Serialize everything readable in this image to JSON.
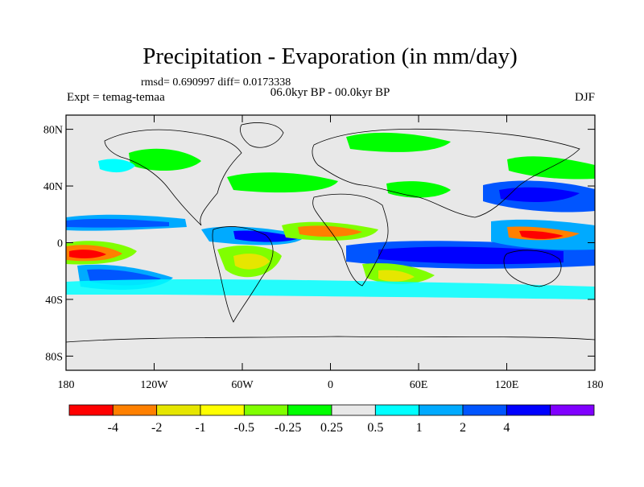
{
  "title": "Precipitation - Evaporation (in mm/day)",
  "stats": "rmsd= 0.690997 diff= 0.0173338",
  "expt": "Expt = temag-temaa",
  "subtitle": "06.0kyr BP - 00.0kyr BP",
  "season": "DJF",
  "map": {
    "lat_ticks": [
      {
        "lat": 80,
        "label": "80N"
      },
      {
        "lat": 40,
        "label": "40N"
      },
      {
        "lat": 0,
        "label": "0"
      },
      {
        "lat": -40,
        "label": "40S"
      },
      {
        "lat": -80,
        "label": "80S"
      }
    ],
    "lon_ticks": [
      {
        "lon": -180,
        "label": "180"
      },
      {
        "lon": -120,
        "label": "120W"
      },
      {
        "lon": -60,
        "label": "60W"
      },
      {
        "lon": 0,
        "label": "0"
      },
      {
        "lon": 60,
        "label": "60E"
      },
      {
        "lon": 120,
        "label": "120E"
      },
      {
        "lon": 180,
        "label": "180"
      }
    ],
    "background_color": "#e8e8e8"
  },
  "colorbar": {
    "colors": [
      "#ff0000",
      "#ff8000",
      "#e6e600",
      "#ffff00",
      "#80ff00",
      "#00ff00",
      "#e8e8e8",
      "#00ffff",
      "#00aaff",
      "#0055ff",
      "#0000ff",
      "#8000ff"
    ],
    "labels": [
      "-4",
      "-2",
      "-1",
      "-0.5",
      "-0.25",
      "0.25",
      "0.5",
      "1",
      "2",
      "4"
    ]
  }
}
